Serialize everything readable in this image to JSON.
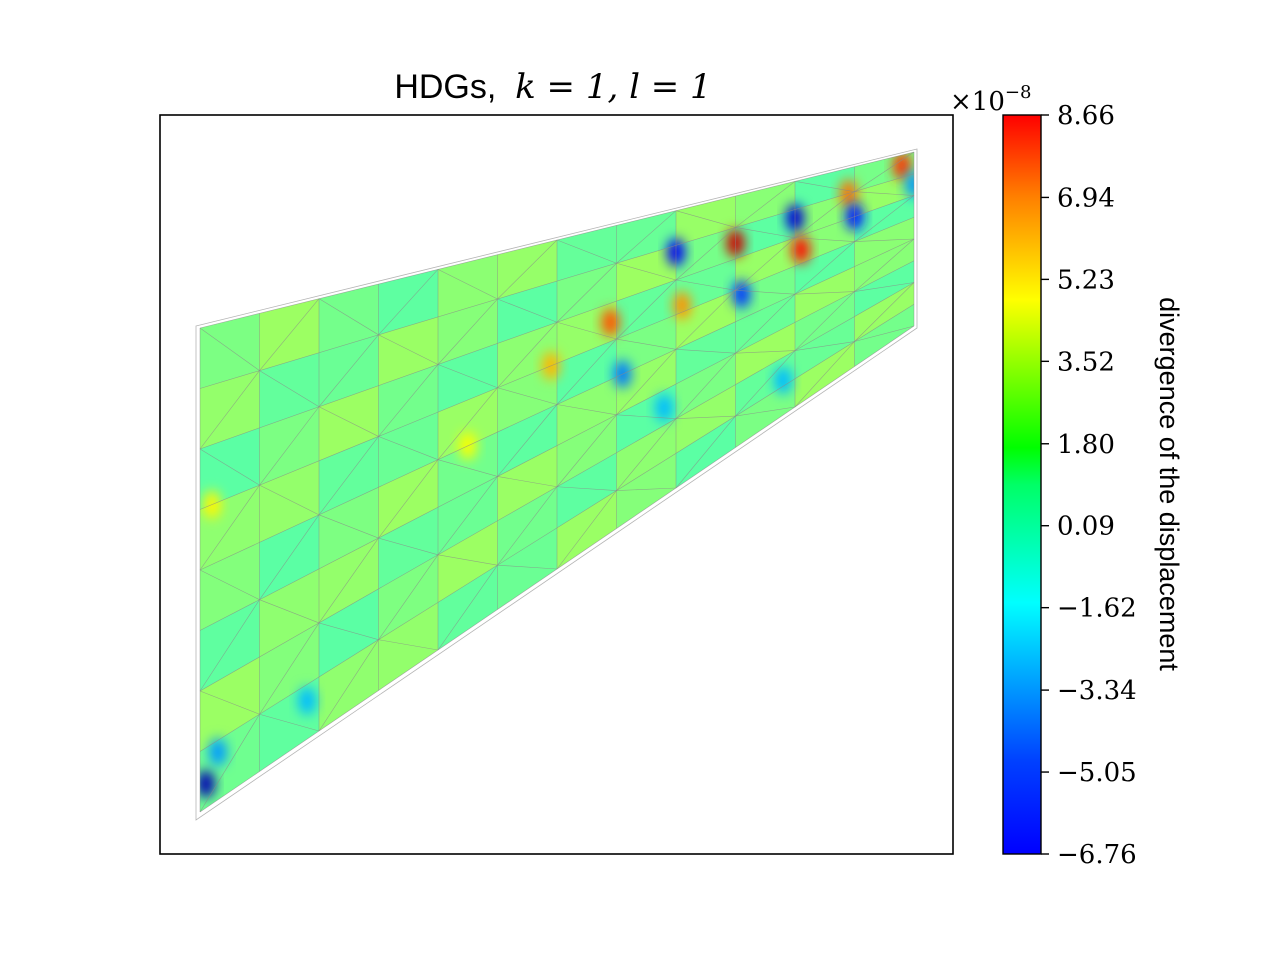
{
  "chart_data": {
    "type": "heatmap",
    "title_prefix": "HDGs,",
    "title_math": "k = 1, l = 1",
    "colorbar": {
      "label": "divergence of the displacement",
      "multiplier": "×10",
      "multiplier_exponent": "−8",
      "min": -6.76,
      "max": 8.66,
      "ticks": [
        -6.76,
        -5.05,
        -3.34,
        -1.62,
        0.09,
        1.8,
        3.52,
        5.23,
        6.94,
        8.66
      ],
      "tick_labels": [
        "−6.76",
        "−5.05",
        "−3.34",
        "−1.62",
        "0.09",
        "1.80",
        "3.52",
        "5.23",
        "6.94",
        "8.66"
      ],
      "colormap": "jet"
    },
    "mesh": {
      "columns": 12,
      "rows": 8,
      "field_background": 0.9,
      "hotspots": [
        {
          "col": 0.1,
          "row": 7.6,
          "value": -6.0
        },
        {
          "col": 0.3,
          "row": 7.2,
          "value": -2.5
        },
        {
          "col": 1.8,
          "row": 7.3,
          "value": -2.0
        },
        {
          "col": 5.9,
          "row": 3.0,
          "value": 4.0
        },
        {
          "col": 6.9,
          "row": 2.5,
          "value": 5.5
        },
        {
          "col": 7.1,
          "row": 4.0,
          "value": -3.0
        },
        {
          "col": 8.0,
          "row": 1.2,
          "value": -5.0
        },
        {
          "col": 8.1,
          "row": 2.8,
          "value": 4.5
        },
        {
          "col": 9.0,
          "row": 1.5,
          "value": 7.5
        },
        {
          "col": 9.1,
          "row": 3.2,
          "value": -4.0
        },
        {
          "col": 10.0,
          "row": 1.3,
          "value": -5.5
        },
        {
          "col": 10.1,
          "row": 2.5,
          "value": 6.5
        },
        {
          "col": 10.9,
          "row": 1.0,
          "value": 5.0
        },
        {
          "col": 11.0,
          "row": 2.0,
          "value": -4.5
        },
        {
          "col": 11.8,
          "row": 0.5,
          "value": 6.0
        },
        {
          "col": 12.0,
          "row": 1.5,
          "value": -2.5
        },
        {
          "col": 0.2,
          "row": 3.0,
          "value": 3.0
        },
        {
          "col": 4.5,
          "row": 4.0,
          "value": 2.8
        },
        {
          "col": 7.8,
          "row": 5.5,
          "value": -2.0
        },
        {
          "col": 9.8,
          "row": 6.8,
          "value": -2.0
        }
      ]
    }
  }
}
